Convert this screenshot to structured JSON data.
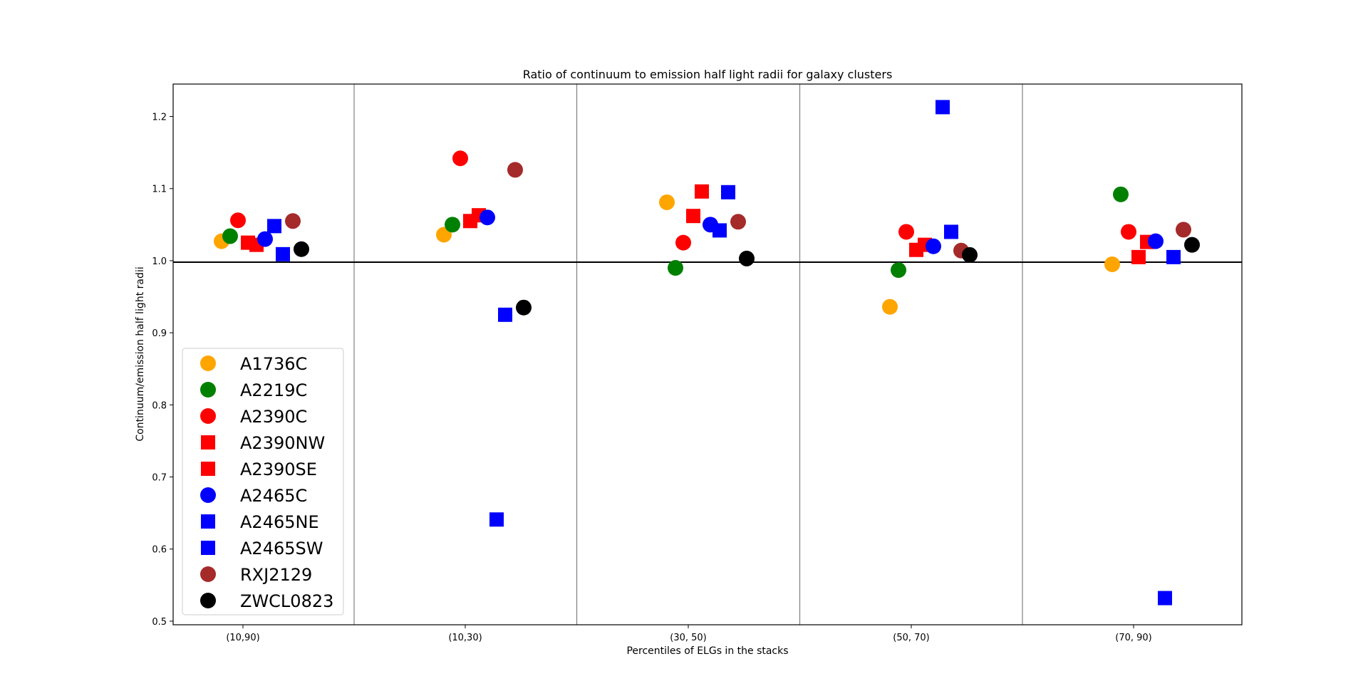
{
  "chart_data": {
    "type": "scatter",
    "title": "Ratio of continuum to emission half light radii for galaxy clusters",
    "xlabel": "Percentiles of ELGs in the stacks",
    "ylabel": "Continuum/emission half light radii",
    "categories": [
      "(10,90)",
      "(10,30)",
      "(30, 50)",
      "(50, 70)",
      "(70, 90)"
    ],
    "ylim": [
      0.495,
      1.245
    ],
    "yticks": [
      "0.5",
      "0.6",
      "0.7",
      "0.8",
      "0.9",
      "1.0",
      "1.1",
      "1.2"
    ],
    "reference_line": 1.0,
    "grid": false,
    "legend_position": "lower-left",
    "series": [
      {
        "name": "A1736C",
        "marker": "circle",
        "color": "#ffa500",
        "values": [
          1.027,
          1.036,
          1.081,
          0.936,
          0.995
        ]
      },
      {
        "name": "A2219C",
        "marker": "circle",
        "color": "#008000",
        "values": [
          1.034,
          1.05,
          0.99,
          0.987,
          1.092
        ]
      },
      {
        "name": "A2390C",
        "marker": "circle",
        "color": "#ff0000",
        "values": [
          1.056,
          1.142,
          1.025,
          1.04,
          1.04
        ]
      },
      {
        "name": "A2390NW",
        "marker": "square",
        "color": "#ff0000",
        "values": [
          1.025,
          1.055,
          1.062,
          1.015,
          1.005
        ]
      },
      {
        "name": "A2390SE",
        "marker": "square",
        "color": "#ff0000",
        "values": [
          1.022,
          1.063,
          1.096,
          1.022,
          1.026
        ]
      },
      {
        "name": "A2465C",
        "marker": "circle",
        "color": "#0000ff",
        "values": [
          1.03,
          1.06,
          1.05,
          1.02,
          1.027
        ]
      },
      {
        "name": "A2465NE",
        "marker": "square",
        "color": "#0000ff",
        "values": [
          1.048,
          0.641,
          1.042,
          1.213,
          0.532
        ]
      },
      {
        "name": "A2465SW",
        "marker": "square",
        "color": "#0000ff",
        "values": [
          1.009,
          0.925,
          1.095,
          1.04,
          1.005
        ]
      },
      {
        "name": "RXJ2129",
        "marker": "circle",
        "color": "#a52a2a",
        "values": [
          1.055,
          1.126,
          1.054,
          1.014,
          1.043
        ]
      },
      {
        "name": "ZWCL0823",
        "marker": "circle",
        "color": "#000000",
        "values": [
          1.016,
          0.935,
          1.003,
          1.008,
          1.022
        ]
      }
    ]
  }
}
